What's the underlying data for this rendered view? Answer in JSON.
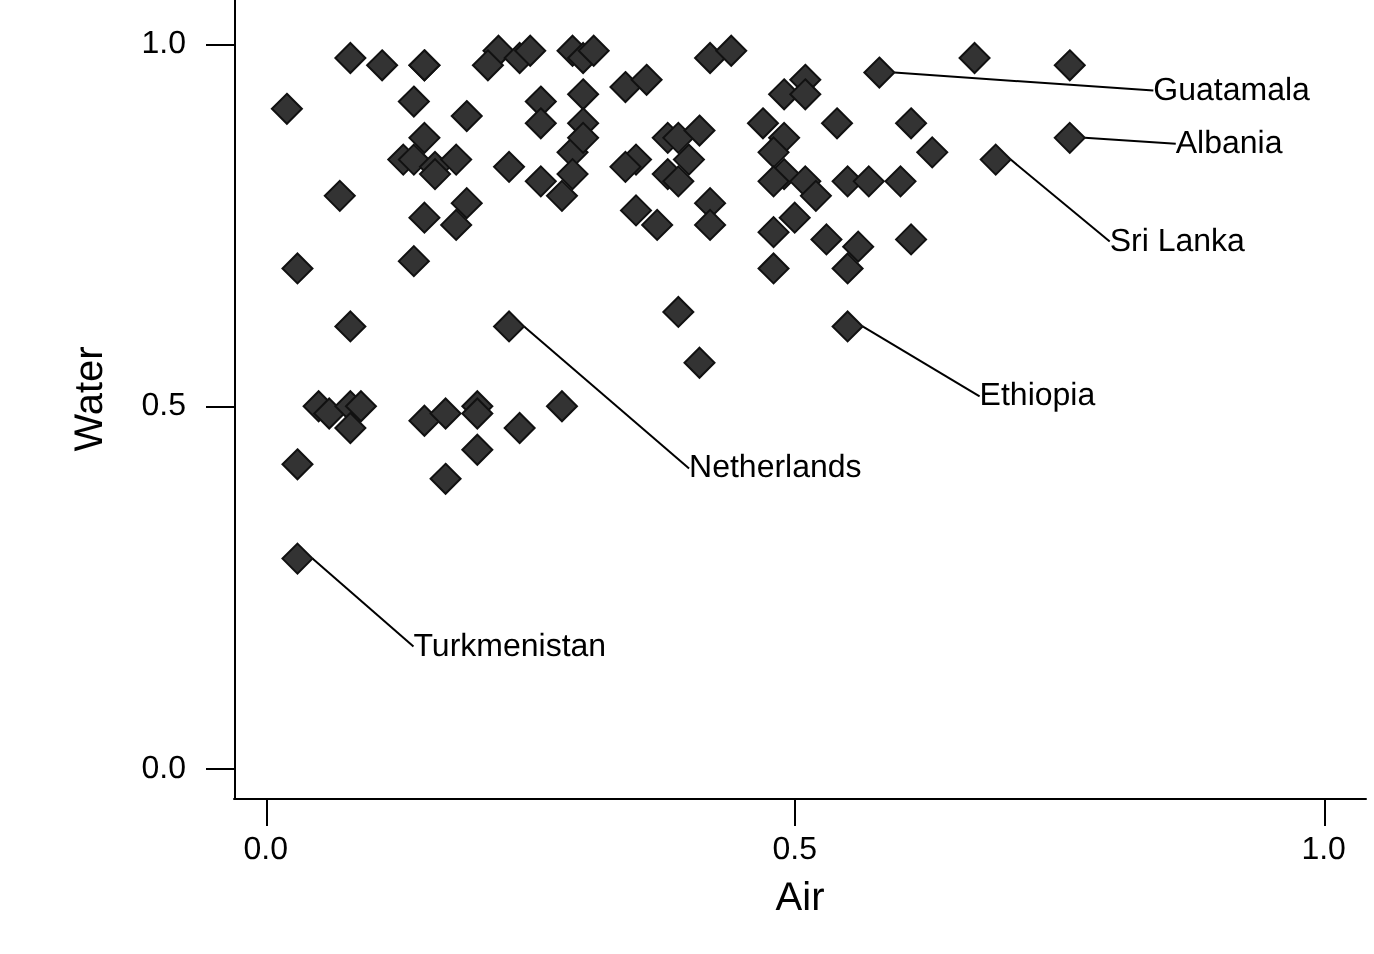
{
  "chart_data": {
    "type": "scatter",
    "xlabel": "Air",
    "ylabel": "Water",
    "marker": "diamond",
    "grid": false,
    "xlim": [
      -0.03,
      1.04
    ],
    "ylim": [
      -0.04,
      1.06
    ],
    "xticks": [
      {
        "value": 0,
        "label": "0.0"
      },
      {
        "value": 0.5,
        "label": "0.5"
      },
      {
        "value": 1,
        "label": "1.0"
      }
    ],
    "yticks": [
      {
        "value": 0,
        "label": "0.0"
      },
      {
        "value": 0.5,
        "label": "0.5"
      },
      {
        "value": 1,
        "label": "1.0"
      }
    ],
    "series": [
      {
        "color": "#333333",
        "x": [
          0.08,
          0.11,
          0.15,
          0.15,
          0.22,
          0.21,
          0.24,
          0.25,
          0.29,
          0.3,
          0.02,
          0.14,
          0.19,
          0.26,
          0.26,
          0.3,
          0.3,
          0.15,
          0.13,
          0.14,
          0.16,
          0.16,
          0.18,
          0.23,
          0.26,
          0.28,
          0.29,
          0.29,
          0.3,
          0.07,
          0.19,
          0.15,
          0.18,
          0.03,
          0.14,
          0.08,
          0.23,
          0.31,
          0.42,
          0.44,
          0.34,
          0.36,
          0.67,
          0.76,
          0.58,
          0.51,
          0.49,
          0.51,
          0.47,
          0.54,
          0.61,
          0.63,
          0.38,
          0.39,
          0.41,
          0.35,
          0.34,
          0.38,
          0.39,
          0.4,
          0.49,
          0.48,
          0.49,
          0.48,
          0.51,
          0.52,
          0.55,
          0.57,
          0.6,
          0.35,
          0.37,
          0.42,
          0.42,
          0.48,
          0.5,
          0.53,
          0.56,
          0.61,
          0.48,
          0.55,
          0.39,
          0.55,
          0.41,
          0.76,
          0.69,
          0.05,
          0.06,
          0.08,
          0.09,
          0.08,
          0.03,
          0.03,
          0.15,
          0.17,
          0.2,
          0.2,
          0.2,
          0.17,
          0.24,
          0.28
        ],
        "values": [
          0.98,
          0.97,
          0.97,
          0.97,
          0.99,
          0.97,
          0.98,
          0.99,
          0.99,
          0.98,
          0.91,
          0.92,
          0.9,
          0.92,
          0.89,
          0.93,
          0.89,
          0.87,
          0.84,
          0.84,
          0.83,
          0.82,
          0.84,
          0.83,
          0.81,
          0.79,
          0.85,
          0.82,
          0.87,
          0.79,
          0.78,
          0.76,
          0.75,
          0.69,
          0.7,
          0.61,
          0.61,
          0.99,
          0.98,
          0.99,
          0.94,
          0.95,
          0.98,
          0.97,
          0.96,
          0.95,
          0.93,
          0.93,
          0.89,
          0.89,
          0.89,
          0.85,
          0.87,
          0.87,
          0.88,
          0.84,
          0.83,
          0.82,
          0.81,
          0.84,
          0.87,
          0.85,
          0.82,
          0.81,
          0.81,
          0.79,
          0.81,
          0.81,
          0.81,
          0.77,
          0.75,
          0.78,
          0.75,
          0.74,
          0.76,
          0.73,
          0.72,
          0.73,
          0.69,
          0.69,
          0.63,
          0.61,
          0.56,
          0.87,
          0.84,
          0.5,
          0.49,
          0.5,
          0.5,
          0.47,
          0.42,
          0.29,
          0.48,
          0.49,
          0.5,
          0.49,
          0.44,
          0.4,
          0.47,
          0.5
        ]
      }
    ],
    "annotations": [
      {
        "text": "Guatamala",
        "x": 0.58,
        "y": 0.96
      },
      {
        "text": "Albania",
        "x": 0.76,
        "y": 0.87
      },
      {
        "text": "Sri Lanka",
        "x": 0.69,
        "y": 0.84
      },
      {
        "text": "Ethiopia",
        "x": 0.55,
        "y": 0.61
      },
      {
        "text": "Netherlands",
        "x": 0.23,
        "y": 0.61
      },
      {
        "text": "Turkmenistan",
        "x": 0.03,
        "y": 0.29
      }
    ]
  }
}
